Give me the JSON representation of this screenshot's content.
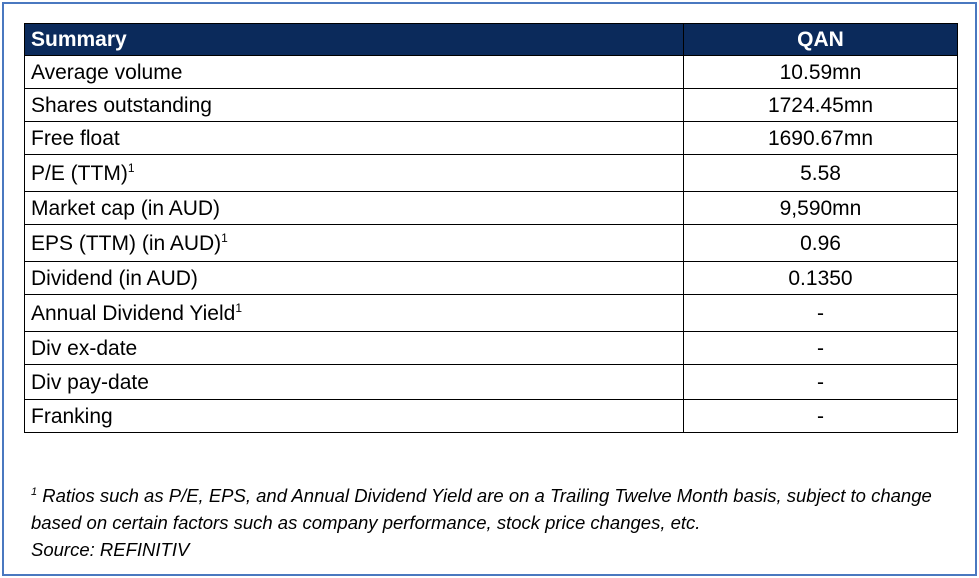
{
  "table": {
    "header": {
      "label": "Summary",
      "column": "QAN"
    },
    "rows": [
      {
        "label": "Average volume",
        "sup": "",
        "value": "10.59mn"
      },
      {
        "label": "Shares outstanding",
        "sup": "",
        "value": "1724.45mn"
      },
      {
        "label": "Free float",
        "sup": "",
        "value": "1690.67mn"
      },
      {
        "label": "P/E (TTM)",
        "sup": "1",
        "value": "5.58"
      },
      {
        "label": "Market cap (in AUD)",
        "sup": "",
        "value": "9,590mn"
      },
      {
        "label": "EPS (TTM) (in AUD)",
        "sup": "1",
        "value": "0.96"
      },
      {
        "label": "Dividend (in AUD)",
        "sup": "",
        "value": "0.1350"
      },
      {
        "label": "Annual Dividend Yield",
        "sup": "1",
        "value": "-"
      },
      {
        "label": "Div ex-date",
        "sup": "",
        "value": "-"
      },
      {
        "label": "Div pay-date",
        "sup": "",
        "value": "-"
      },
      {
        "label": "Franking",
        "sup": "",
        "value": "-"
      }
    ]
  },
  "footnote": {
    "marker": "1",
    "text": "Ratios such as P/E, EPS, and Annual Dividend Yield are on a Trailing Twelve Month basis, subject to change based on certain factors such as company performance, stock price changes, etc.",
    "source": "Source: REFINITIV"
  },
  "colors": {
    "header_bg": "#0b2a5b",
    "frame_border": "#4a78c0"
  }
}
